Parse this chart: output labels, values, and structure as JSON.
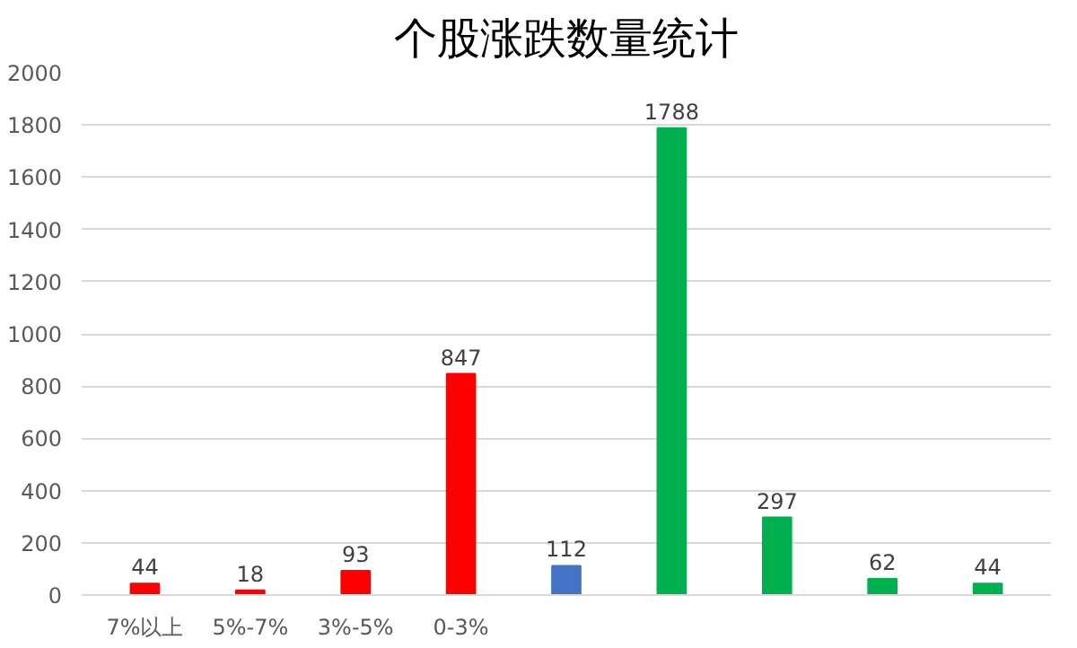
{
  "chart_data": {
    "type": "bar",
    "title": "个股涨跌数量统计",
    "categories": [
      "7%以上",
      "5%-7%",
      "3%-5%",
      "0-3%",
      null,
      null,
      null,
      null,
      null
    ],
    "values": [
      44,
      18,
      93,
      847,
      112,
      1788,
      297,
      62,
      44
    ],
    "colors": [
      "#ff0000",
      "#ff0000",
      "#ff0000",
      "#ff0000",
      "#4472c4",
      "#00b050",
      "#00b050",
      "#00b050",
      "#00b050"
    ],
    "ylim": [
      0,
      2000
    ],
    "yticks": [
      0,
      200,
      400,
      600,
      800,
      1000,
      1200,
      1400,
      1600,
      1800,
      2000
    ],
    "grid": "y",
    "data_labels": true
  }
}
